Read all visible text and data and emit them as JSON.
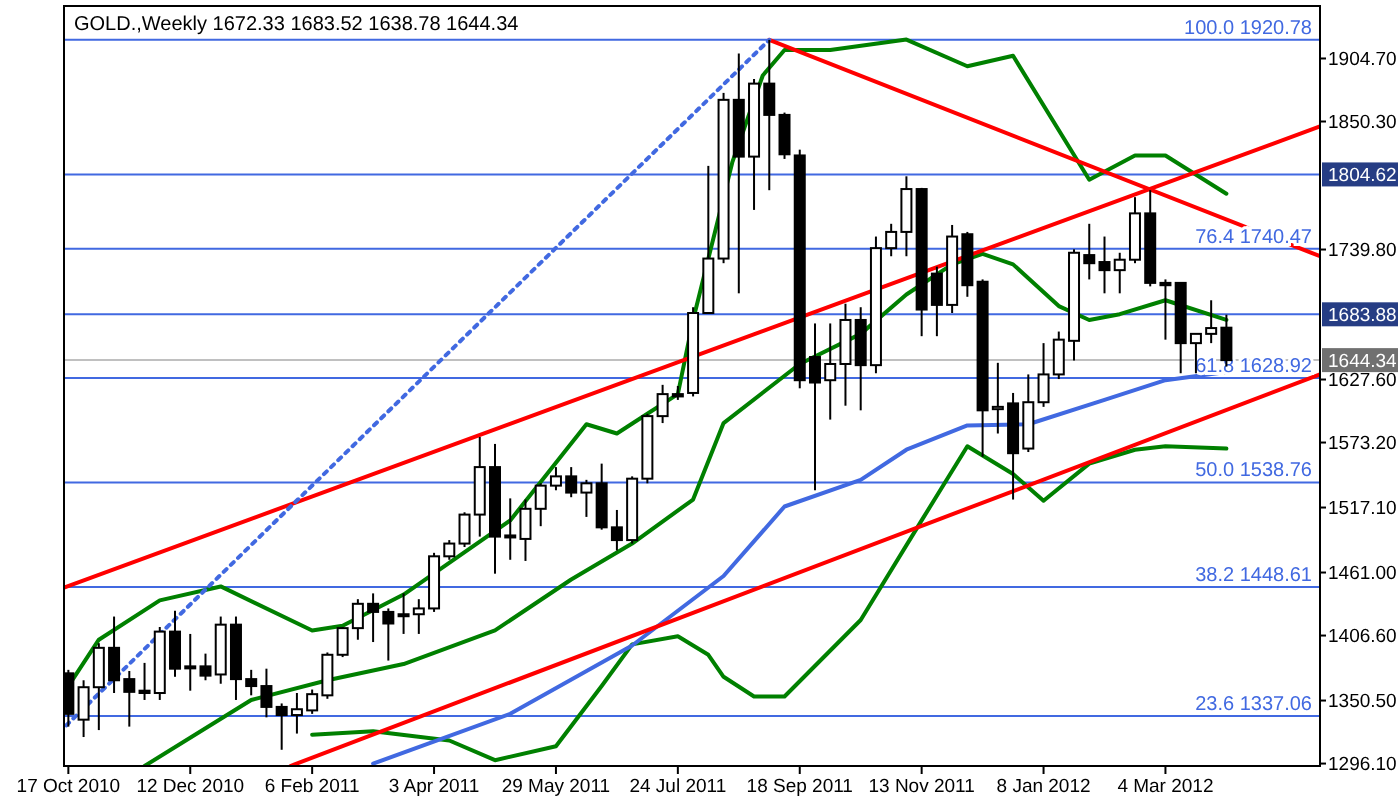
{
  "chart_data": {
    "type": "candlestick",
    "title": "GOLD.,Weekly  1672.33 1683.52 1638.78 1644.34",
    "x": [
      "2010-10-17",
      "2010-10-24",
      "2010-10-31",
      "2010-11-07",
      "2010-11-14",
      "2010-11-21",
      "2010-11-28",
      "2010-12-05",
      "2010-12-12",
      "2010-12-19",
      "2010-12-26",
      "2011-01-02",
      "2011-01-09",
      "2011-01-16",
      "2011-01-23",
      "2011-01-30",
      "2011-02-06",
      "2011-02-13",
      "2011-02-20",
      "2011-02-27",
      "2011-03-06",
      "2011-03-13",
      "2011-03-20",
      "2011-03-27",
      "2011-04-03",
      "2011-04-10",
      "2011-04-17",
      "2011-04-24",
      "2011-05-01",
      "2011-05-08",
      "2011-05-15",
      "2011-05-22",
      "2011-05-29",
      "2011-06-05",
      "2011-06-12",
      "2011-06-19",
      "2011-06-26",
      "2011-07-03",
      "2011-07-10",
      "2011-07-17",
      "2011-07-24",
      "2011-07-31",
      "2011-08-07",
      "2011-08-14",
      "2011-08-21",
      "2011-08-28",
      "2011-09-04",
      "2011-09-11",
      "2011-09-18",
      "2011-09-25",
      "2011-10-02",
      "2011-10-09",
      "2011-10-16",
      "2011-10-23",
      "2011-10-30",
      "2011-11-06",
      "2011-11-13",
      "2011-11-20",
      "2011-11-27",
      "2011-12-04",
      "2011-12-11",
      "2011-12-18",
      "2011-12-25",
      "2012-01-01",
      "2012-01-08",
      "2012-01-15",
      "2012-01-22",
      "2012-01-29",
      "2012-02-05",
      "2012-02-12",
      "2012-02-19",
      "2012-02-26",
      "2012-03-04",
      "2012-03-11",
      "2012-03-18",
      "2012-03-25",
      "2012-04-01"
    ],
    "ohlc": [
      [
        1374,
        1377,
        1328,
        1339
      ],
      [
        1334,
        1368,
        1319,
        1362
      ],
      [
        1362,
        1400,
        1325,
        1396
      ],
      [
        1396,
        1423,
        1357,
        1368
      ],
      [
        1369,
        1376,
        1328,
        1358
      ],
      [
        1359,
        1383,
        1351,
        1357
      ],
      [
        1357,
        1414,
        1351,
        1410
      ],
      [
        1410,
        1428,
        1371,
        1378
      ],
      [
        1379,
        1408,
        1359,
        1380
      ],
      [
        1380,
        1391,
        1368,
        1372
      ],
      [
        1373,
        1423,
        1365,
        1416
      ],
      [
        1416,
        1423,
        1351,
        1369
      ],
      [
        1369,
        1377,
        1355,
        1363
      ],
      [
        1363,
        1378,
        1336,
        1345
      ],
      [
        1345,
        1348,
        1308,
        1338
      ],
      [
        1338,
        1357,
        1322,
        1343
      ],
      [
        1342,
        1360,
        1339,
        1356
      ],
      [
        1355,
        1392,
        1352,
        1390
      ],
      [
        1390,
        1414,
        1388,
        1413
      ],
      [
        1413,
        1438,
        1403,
        1434
      ],
      [
        1434,
        1443,
        1401,
        1427
      ],
      [
        1427,
        1430,
        1385,
        1417
      ],
      [
        1425,
        1443,
        1408,
        1424
      ],
      [
        1425,
        1438,
        1408,
        1430
      ],
      [
        1430,
        1478,
        1427,
        1475
      ],
      [
        1475,
        1489,
        1472,
        1486
      ],
      [
        1486,
        1513,
        1483,
        1511
      ],
      [
        1511,
        1578,
        1492,
        1552
      ],
      [
        1552,
        1572,
        1460,
        1492
      ],
      [
        1492,
        1525,
        1472,
        1493
      ],
      [
        1490,
        1524,
        1471,
        1516
      ],
      [
        1516,
        1538,
        1501,
        1536
      ],
      [
        1536,
        1552,
        1532,
        1544
      ],
      [
        1544,
        1552,
        1526,
        1530
      ],
      [
        1530,
        1541,
        1509,
        1538
      ],
      [
        1538,
        1555,
        1498,
        1500
      ],
      [
        1500,
        1515,
        1480,
        1489
      ],
      [
        1489,
        1544,
        1486,
        1542
      ],
      [
        1542,
        1598,
        1538,
        1596
      ],
      [
        1596,
        1623,
        1590,
        1615
      ],
      [
        1615,
        1622,
        1610,
        1613
      ],
      [
        1616,
        1690,
        1613,
        1685
      ],
      [
        1685,
        1812,
        1685,
        1732
      ],
      [
        1732,
        1875,
        1728,
        1869
      ],
      [
        1869,
        1909,
        1702,
        1820
      ],
      [
        1820,
        1887,
        1774,
        1883
      ],
      [
        1883,
        1920.78,
        1791,
        1856
      ],
      [
        1856,
        1858,
        1818,
        1822
      ],
      [
        1821,
        1826,
        1620,
        1627
      ],
      [
        1647,
        1676,
        1532,
        1625
      ],
      [
        1627,
        1676,
        1593,
        1641
      ],
      [
        1641,
        1693,
        1605,
        1679
      ],
      [
        1679,
        1690,
        1601,
        1640
      ],
      [
        1640,
        1751,
        1633,
        1741
      ],
      [
        1741,
        1762,
        1734,
        1755
      ],
      [
        1755,
        1803,
        1734,
        1792
      ],
      [
        1792,
        1793,
        1665,
        1688
      ],
      [
        1719,
        1725,
        1665,
        1692
      ],
      [
        1692,
        1761,
        1685,
        1751
      ],
      [
        1753,
        1755,
        1699,
        1709
      ],
      [
        1712,
        1714,
        1561,
        1601
      ],
      [
        1602,
        1642,
        1581,
        1604
      ],
      [
        1607,
        1616,
        1524,
        1564
      ],
      [
        1568,
        1632,
        1565,
        1608
      ],
      [
        1608,
        1659,
        1604,
        1632
      ],
      [
        1632,
        1669,
        1628,
        1662
      ],
      [
        1661,
        1740,
        1644,
        1737
      ],
      [
        1735,
        1762,
        1714,
        1728
      ],
      [
        1729,
        1751,
        1702,
        1722
      ],
      [
        1722,
        1737,
        1702,
        1731
      ],
      [
        1731,
        1785,
        1728,
        1771
      ],
      [
        1771,
        1791,
        1708,
        1711
      ],
      [
        1711,
        1714,
        1662,
        1709
      ],
      [
        1711,
        1711,
        1633,
        1659
      ],
      [
        1659,
        1667,
        1633,
        1667
      ],
      [
        1667,
        1696,
        1659,
        1672
      ],
      [
        1672.33,
        1683.52,
        1638.78,
        1644.34
      ]
    ],
    "series": [
      {
        "type": "line",
        "color": "#008000",
        "x": [
          "2010-10-17",
          "2010-10-31",
          "2010-11-28",
          "2010-12-26",
          "2011-02-06",
          "2011-02-20",
          "2011-03-20",
          "2011-05-08",
          "2011-06-12",
          "2011-06-26",
          "2011-07-10",
          "2011-07-24",
          "2011-07-31",
          "2011-08-18",
          "2011-09-01",
          "2011-09-11",
          "2011-10-02",
          "2011-11-06",
          "2011-12-04",
          "2011-12-25",
          "2012-01-29",
          "2012-02-19",
          "2012-03-04",
          "2012-04-01"
        ],
        "values": [
          1363,
          1403,
          1437,
          1449,
          1411,
          1415,
          1442,
          1506,
          1589,
          1581,
          1598,
          1615,
          1679,
          1815,
          1890,
          1912,
          1912,
          1921,
          1898,
          1907,
          1800,
          1821,
          1821,
          1788
        ]
      },
      {
        "type": "line",
        "color": "#008000",
        "x": [
          "2010-11-21",
          "2011-01-09",
          "2011-02-13",
          "2011-03-20",
          "2011-05-01",
          "2011-06-05",
          "2011-07-03",
          "2011-07-31",
          "2011-08-14",
          "2011-09-18",
          "2011-10-16",
          "2011-11-06",
          "2011-11-27",
          "2011-12-11",
          "2011-12-25",
          "2012-01-15",
          "2012-01-29",
          "2012-02-12",
          "2012-03-04",
          "2012-04-01"
        ],
        "values": [
          1294,
          1351,
          1368,
          1382,
          1411,
          1455,
          1486,
          1524,
          1590,
          1641,
          1667,
          1701,
          1727,
          1736,
          1727,
          1691,
          1679,
          1684,
          1696,
          1679
        ]
      },
      {
        "type": "line",
        "color": "#008000",
        "x": [
          "2011-02-06",
          "2011-03-06",
          "2011-04-10",
          "2011-05-01",
          "2011-05-29",
          "2011-06-19",
          "2011-07-03",
          "2011-07-24",
          "2011-08-07",
          "2011-08-14",
          "2011-08-28",
          "2011-09-11",
          "2011-10-16",
          "2011-11-13",
          "2011-12-04",
          "2011-12-25",
          "2012-01-08",
          "2012-01-29",
          "2012-02-19",
          "2012-03-04",
          "2012-04-01"
        ],
        "values": [
          1321,
          1324,
          1316,
          1299,
          1311,
          1363,
          1399,
          1406,
          1390,
          1371,
          1354,
          1354,
          1420,
          1506,
          1570,
          1546,
          1523,
          1555,
          1567,
          1570,
          1568
        ]
      },
      {
        "type": "line",
        "color": "#4169e1",
        "x": [
          "2011-03-06",
          "2011-05-08",
          "2011-07-03",
          "2011-08-14",
          "2011-09-11",
          "2011-10-16",
          "2011-11-06",
          "2011-12-04",
          "2012-01-01",
          "2012-02-05",
          "2012-03-04",
          "2012-04-01"
        ],
        "values": [
          1296,
          1339,
          1398,
          1458,
          1518,
          1541,
          1567,
          1588,
          1589,
          1610,
          1627,
          1634
        ]
      },
      {
        "type": "line",
        "color": "#ff0000",
        "x": [
          "2010-10-15",
          "2012-05-14"
        ],
        "values": [
          1448,
          1846
        ]
      },
      {
        "type": "line",
        "color": "#ff0000",
        "x": [
          "2011-09-04",
          "2012-05-14"
        ],
        "values": [
          1920.78,
          1734
        ]
      },
      {
        "type": "line",
        "color": "#ff0000",
        "x": [
          "2011-01-27",
          "2012-05-14"
        ],
        "values": [
          1294,
          1632
        ]
      },
      {
        "type": "line",
        "color": "#4169e1",
        "line_style": "dotted",
        "x": [
          "2010-10-16",
          "2011-09-04"
        ],
        "values": [
          1329,
          1920.78
        ]
      }
    ],
    "xlim": [
      "2010-10-15",
      "2012-05-14"
    ],
    "ylim": [
      1294,
      1950
    ],
    "xticks": [
      {
        "value": "2010-10-17",
        "label": "17 Oct 2010"
      },
      {
        "value": "2010-12-12",
        "label": "12 Dec 2010"
      },
      {
        "value": "2011-02-06",
        "label": "6 Feb 2011"
      },
      {
        "value": "2011-04-03",
        "label": "3 Apr 2011"
      },
      {
        "value": "2011-05-29",
        "label": "29 May 2011"
      },
      {
        "value": "2011-07-24",
        "label": "24 Jul 2011"
      },
      {
        "value": "2011-09-18",
        "label": "18 Sep 2011"
      },
      {
        "value": "2011-11-13",
        "label": "13 Nov 2011"
      },
      {
        "value": "2012-01-08",
        "label": "8 Jan 2012"
      },
      {
        "value": "2012-03-04",
        "label": "4 Mar 2012"
      }
    ],
    "yticks": [
      {
        "value": 1296.1,
        "label": "1296.10"
      },
      {
        "value": 1350.5,
        "label": "1350.50"
      },
      {
        "value": 1406.6,
        "label": "1406.60"
      },
      {
        "value": 1461,
        "label": "1461.00"
      },
      {
        "value": 1517.1,
        "label": "1517.10"
      },
      {
        "value": 1573.2,
        "label": "1573.20"
      },
      {
        "value": 1627.6,
        "label": "1627.60"
      },
      {
        "value": 1739.8,
        "label": "1739.80"
      },
      {
        "value": 1850.3,
        "label": "1850.30"
      },
      {
        "value": 1904.7,
        "label": "1904.70"
      }
    ],
    "ref_lines": [
      {
        "axis": "y",
        "value": 1920.78,
        "label": "100.0 1920.78",
        "color": "#4169e1"
      },
      {
        "axis": "y",
        "value": 1740.47,
        "label": "76.4 1740.47",
        "color": "#4169e1"
      },
      {
        "axis": "y",
        "value": 1628.92,
        "label": "61.8 1628.92",
        "color": "#4169e1"
      },
      {
        "axis": "y",
        "value": 1538.76,
        "label": "50.0 1538.76",
        "color": "#4169e1"
      },
      {
        "axis": "y",
        "value": 1448.61,
        "label": "38.2 1448.61",
        "color": "#4169e1"
      },
      {
        "axis": "y",
        "value": 1337.06,
        "label": "23.6 1337.06",
        "color": "#4169e1"
      },
      {
        "axis": "y",
        "value": 1804.62,
        "color": "#4169e1"
      },
      {
        "axis": "y",
        "value": 1683.88,
        "color": "#4169e1"
      },
      {
        "axis": "y",
        "value": 1644.34,
        "color": "#c0c0c0"
      }
    ],
    "annotations": [
      {
        "text": "1804.62",
        "y": 1804.62
      },
      {
        "text": "1683.88",
        "y": 1683.88
      },
      {
        "text": "1644.34",
        "y": 1644.34
      }
    ]
  }
}
